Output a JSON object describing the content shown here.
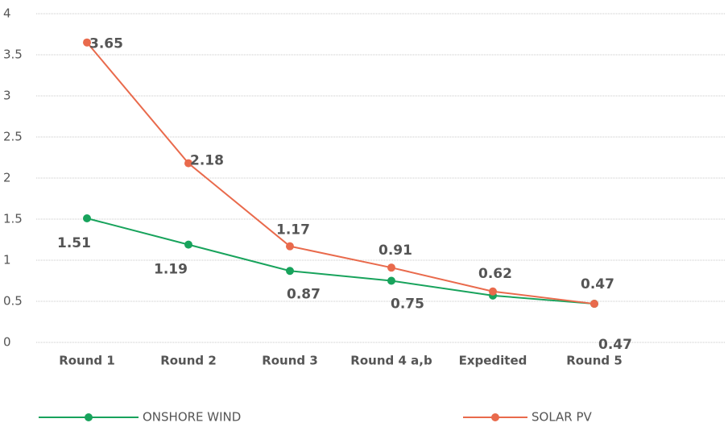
{
  "chart_data": {
    "type": "line",
    "categories": [
      "Round 1",
      "Round 2",
      "Round 3",
      "Round 4 a,b",
      "Expedited",
      "Round 5"
    ],
    "series": [
      {
        "name": "ONSHORE WIND",
        "color": "#18a35c",
        "values": [
          1.51,
          1.19,
          0.87,
          0.75,
          0.57,
          0.47
        ],
        "value_labels": [
          "1.51",
          "1.19",
          "0.87",
          "0.75",
          null,
          "0.47"
        ]
      },
      {
        "name": "SOLAR PV",
        "color": "#e96a4c",
        "values": [
          3.65,
          2.18,
          1.17,
          0.91,
          0.62,
          0.47
        ]
      }
    ],
    "ylim": [
      0,
      4
    ],
    "yticks": [
      0,
      0.5,
      1,
      1.5,
      2,
      2.5,
      3,
      3.5,
      4
    ],
    "grid": true
  }
}
